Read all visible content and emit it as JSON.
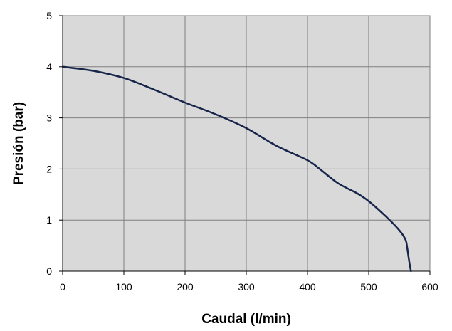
{
  "chart_data": {
    "type": "line",
    "title": "",
    "xlabel": "Caudal (l/min)",
    "ylabel": "Presión (bar)",
    "xlim": [
      0,
      600
    ],
    "ylim": [
      0,
      5
    ],
    "x_ticks": [
      "0",
      "100",
      "200",
      "300",
      "400",
      "500",
      "600"
    ],
    "y_ticks": [
      "0",
      "1",
      "2",
      "3",
      "4",
      "5"
    ],
    "grid": true,
    "legend": "none",
    "plot_background": "#d9d9d9",
    "grid_color": "#808080",
    "line_color": "#17254a",
    "series": [
      {
        "x": [
          0,
          50,
          100,
          150,
          200,
          250,
          300,
          350,
          400,
          420,
          450,
          480,
          500,
          530,
          550,
          560,
          563,
          566,
          569
        ],
        "y": [
          4.0,
          3.92,
          3.78,
          3.55,
          3.3,
          3.07,
          2.8,
          2.45,
          2.17,
          2.0,
          1.72,
          1.53,
          1.37,
          1.05,
          0.8,
          0.62,
          0.45,
          0.2,
          0.0
        ]
      }
    ]
  }
}
